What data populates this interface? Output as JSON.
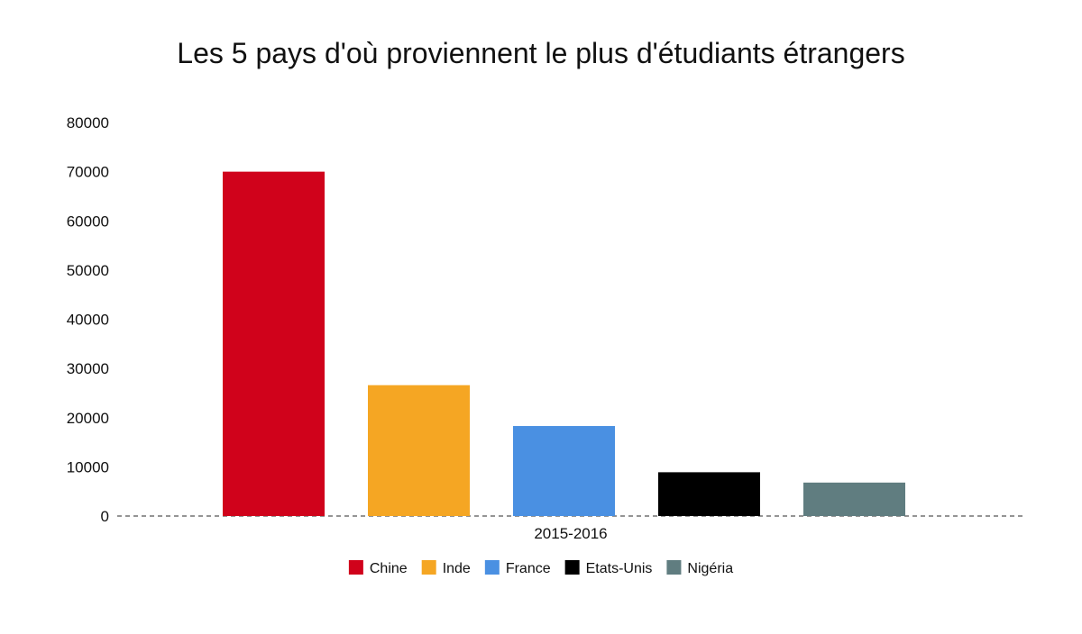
{
  "chart_data": {
    "type": "bar",
    "title": "Les 5 pays d'où proviennent le plus d'étudiants étrangers",
    "categories": [
      "2015-2016"
    ],
    "series": [
      {
        "name": "Chine",
        "values": [
          70000
        ],
        "color": "#d0021b"
      },
      {
        "name": "Inde",
        "values": [
          26600
        ],
        "color": "#f5a623"
      },
      {
        "name": "France",
        "values": [
          18300
        ],
        "color": "#4a90e2"
      },
      {
        "name": "Etats-Unis",
        "values": [
          8900
        ],
        "color": "#000000"
      },
      {
        "name": "Nigéria",
        "values": [
          6800
        ],
        "color": "#607d80"
      }
    ],
    "yticks": [
      "0",
      "10000",
      "20000",
      "30000",
      "40000",
      "50000",
      "60000",
      "70000",
      "80000"
    ],
    "ylim": [
      0,
      80000
    ],
    "xlabel": "",
    "ylabel": "",
    "grid": false,
    "legend_position": "bottom"
  }
}
